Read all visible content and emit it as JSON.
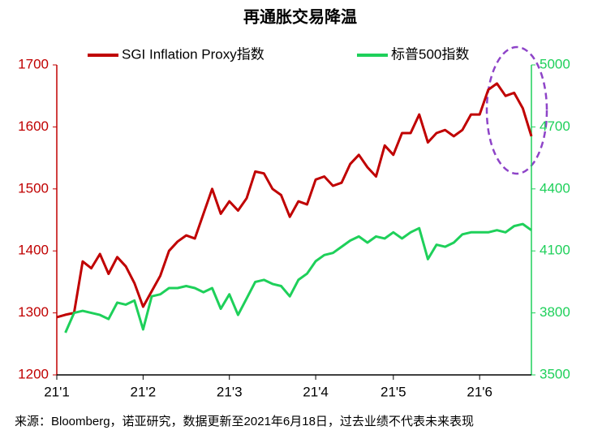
{
  "chart_data": {
    "type": "line",
    "title": "再通胀交易降温",
    "source": "来源：Bloomberg，诺亚研究，数据更新至2021年6月18日，过去业绩不代表未来表现",
    "categories": [
      "21'1",
      null,
      null,
      null,
      null,
      null,
      null,
      null,
      null,
      null,
      "21'2",
      null,
      null,
      null,
      null,
      null,
      null,
      null,
      null,
      null,
      "21'3",
      null,
      null,
      null,
      null,
      null,
      null,
      null,
      null,
      null,
      "21'4",
      null,
      null,
      null,
      null,
      null,
      null,
      null,
      null,
      "21'5",
      null,
      null,
      null,
      null,
      null,
      null,
      null,
      null,
      null,
      "21'6",
      null,
      null,
      null,
      null,
      null,
      null
    ],
    "series": [
      {
        "name": "SGI Inflation Proxy指数",
        "color": "#c00000",
        "axis": "y",
        "values": [
          1293,
          1297,
          1300,
          1383,
          1372,
          1395,
          1363,
          1390,
          1375,
          1348,
          1310,
          1335,
          1360,
          1400,
          1415,
          1425,
          1420,
          1460,
          1500,
          1460,
          1480,
          1465,
          1485,
          1528,
          1525,
          1500,
          1490,
          1455,
          1480,
          1475,
          1515,
          1520,
          1505,
          1510,
          1540,
          1555,
          1535,
          1520,
          1570,
          1555,
          1590,
          1590,
          1620,
          1575,
          1590,
          1595,
          1585,
          1595,
          1620,
          1620,
          1660,
          1670,
          1650,
          1655,
          1630,
          1585
        ]
      },
      {
        "name": "标普500指数",
        "color": "#1ed05a",
        "axis": "y2",
        "values": [
          null,
          3704,
          3800,
          3810,
          3800,
          3790,
          3770,
          3850,
          3840,
          3860,
          3720,
          3880,
          3890,
          3920,
          3920,
          3930,
          3920,
          3900,
          3920,
          3820,
          3890,
          3790,
          3870,
          3950,
          3960,
          3940,
          3930,
          3880,
          3960,
          3990,
          4050,
          4080,
          4090,
          4120,
          4150,
          4170,
          4140,
          4170,
          4160,
          4190,
          4160,
          4190,
          4210,
          4060,
          4130,
          4120,
          4140,
          4180,
          4190,
          4190,
          4190,
          4200,
          4190,
          4220,
          4230,
          4200
        ]
      }
    ],
    "ylim": [
      1200,
      1700
    ],
    "yticks": [
      1200,
      1300,
      1400,
      1500,
      1600,
      1700
    ],
    "ycolor": "#c00000",
    "y2lim": [
      3500,
      5000
    ],
    "y2ticks": [
      3500,
      3800,
      4100,
      4400,
      4700,
      5000
    ],
    "y2color": "#1ed05a",
    "legend": "top",
    "grid": false
  }
}
